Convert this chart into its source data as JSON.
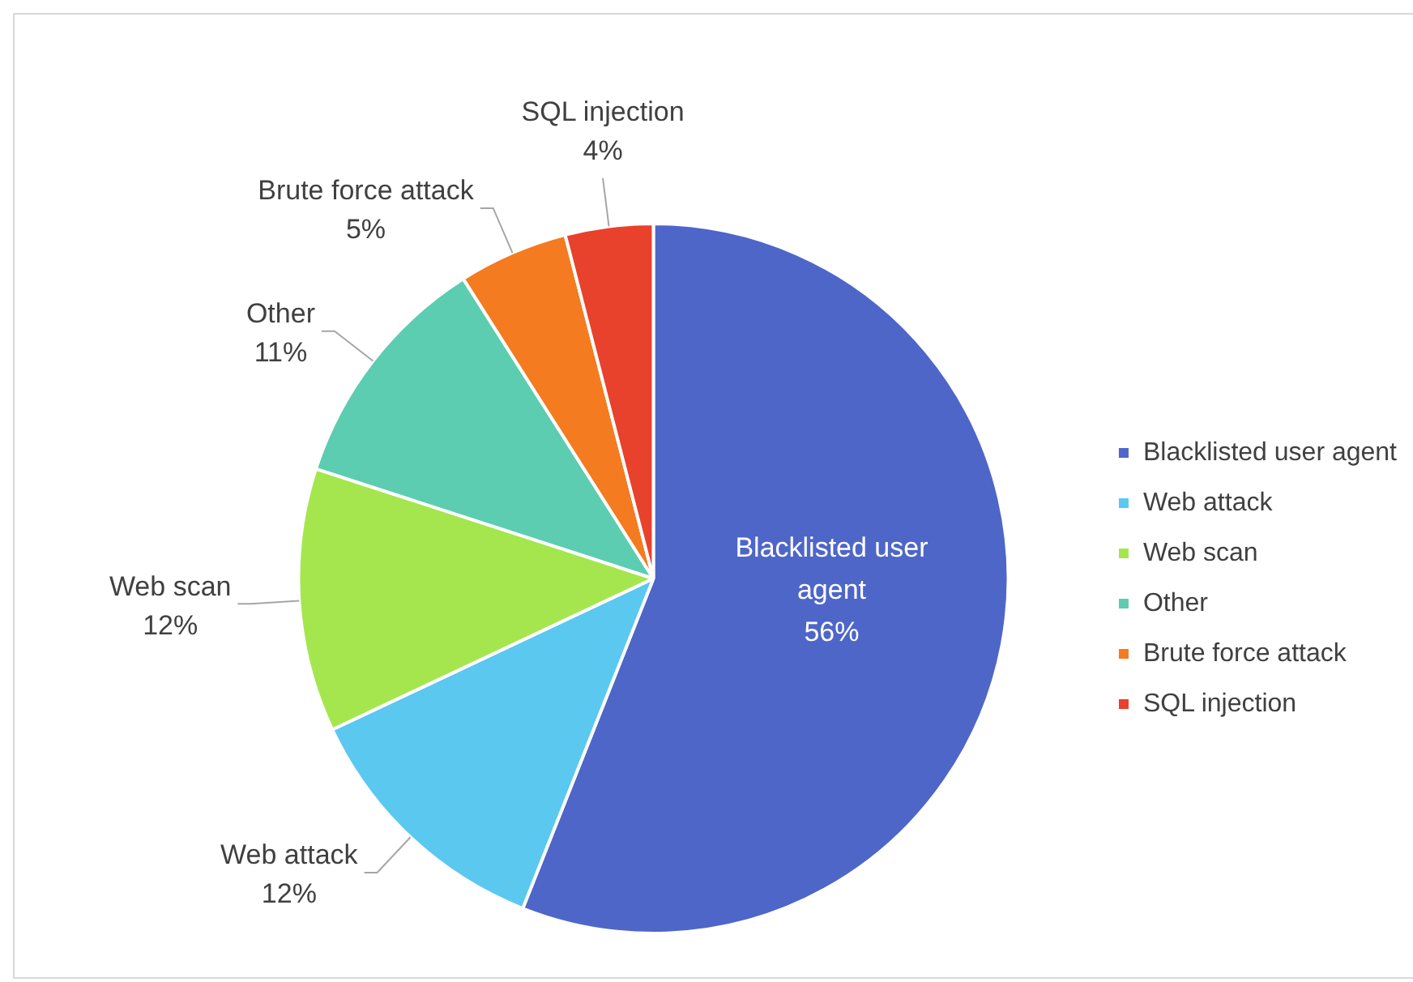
{
  "chart_data": {
    "type": "pie",
    "categories": [
      "Blacklisted user agent",
      "Web attack",
      "Web scan",
      "Other",
      "Brute force attack",
      "SQL injection"
    ],
    "values": [
      56,
      12,
      12,
      11,
      5,
      4
    ],
    "colors": [
      "#4e66c8",
      "#5bc8f0",
      "#a5e64f",
      "#5ccdb0",
      "#f47b20",
      "#e8412c"
    ],
    "value_labels": [
      "56%",
      "12%",
      "12%",
      "11%",
      "5%",
      "4%"
    ],
    "legend": "right"
  }
}
